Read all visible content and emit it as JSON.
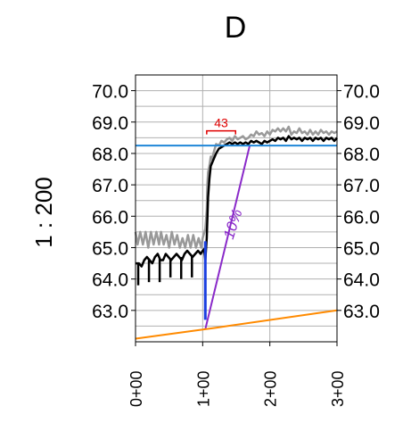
{
  "chart_data": {
    "type": "line",
    "title": "D",
    "ylabel": "1 : 200",
    "ylim": [
      62.0,
      70.5
    ],
    "xlim": [
      0,
      3
    ],
    "grid": true,
    "y_ticks": [
      {
        "value": 70.0,
        "label": "70.0"
      },
      {
        "value": 69.0,
        "label": "69.0"
      },
      {
        "value": 68.0,
        "label": "68.0"
      },
      {
        "value": 67.0,
        "label": "67.0"
      },
      {
        "value": 66.0,
        "label": "66.0"
      },
      {
        "value": 65.0,
        "label": "65.0"
      },
      {
        "value": 64.0,
        "label": "64.0"
      },
      {
        "value": 63.0,
        "label": "63.0"
      }
    ],
    "x_ticks": [
      {
        "value": 0,
        "label": "0+00"
      },
      {
        "value": 1,
        "label": "1+00"
      },
      {
        "value": 2,
        "label": "2+00"
      },
      {
        "value": 3,
        "label": "3+00"
      }
    ],
    "reference_line": {
      "y": 68.25,
      "color": "#1f86d8"
    },
    "annotations": {
      "span_label": "43",
      "span_start": 1.06,
      "span_end": 1.49,
      "span_y": 68.72,
      "slope_label": "10%",
      "slope_label_x": 1.52,
      "slope_label_y": 65.7
    },
    "series": [
      {
        "color": "#999999",
        "points": [
          [
            0.0,
            65.5
          ],
          [
            0.03,
            65.1
          ],
          [
            0.07,
            65.5
          ],
          [
            0.11,
            65.1
          ],
          [
            0.15,
            65.5
          ],
          [
            0.19,
            65.0
          ],
          [
            0.23,
            65.5
          ],
          [
            0.27,
            65.1
          ],
          [
            0.31,
            65.5
          ],
          [
            0.35,
            65.1
          ],
          [
            0.38,
            65.5
          ],
          [
            0.42,
            65.1
          ],
          [
            0.46,
            65.4
          ],
          [
            0.5,
            65.0
          ],
          [
            0.54,
            65.5
          ],
          [
            0.58,
            65.1
          ],
          [
            0.62,
            65.4
          ],
          [
            0.66,
            65.0
          ],
          [
            0.7,
            65.3
          ],
          [
            0.74,
            65.0
          ],
          [
            0.78,
            65.4
          ],
          [
            0.82,
            65.0
          ],
          [
            0.86,
            65.4
          ],
          [
            0.9,
            65.0
          ],
          [
            0.94,
            65.3
          ],
          [
            0.98,
            65.0
          ],
          [
            1.0,
            65.3
          ],
          [
            1.02,
            65.45
          ],
          [
            1.04,
            65.6
          ],
          [
            1.06,
            66.2
          ],
          [
            1.07,
            67.0
          ],
          [
            1.08,
            67.4
          ],
          [
            1.1,
            67.6
          ],
          [
            1.12,
            67.9
          ],
          [
            1.14,
            67.8
          ],
          [
            1.16,
            68.0
          ],
          [
            1.2,
            68.3
          ],
          [
            1.24,
            68.25
          ],
          [
            1.28,
            68.4
          ],
          [
            1.32,
            68.35
          ],
          [
            1.36,
            68.45
          ],
          [
            1.4,
            68.5
          ],
          [
            1.44,
            68.4
          ],
          [
            1.48,
            68.55
          ],
          [
            1.52,
            68.45
          ],
          [
            1.56,
            68.5
          ],
          [
            1.6,
            68.55
          ],
          [
            1.64,
            68.45
          ],
          [
            1.68,
            68.5
          ],
          [
            1.72,
            68.6
          ],
          [
            1.76,
            68.55
          ],
          [
            1.8,
            68.7
          ],
          [
            1.84,
            68.6
          ],
          [
            1.88,
            68.65
          ],
          [
            1.92,
            68.55
          ],
          [
            1.96,
            68.7
          ],
          [
            2.0,
            68.6
          ],
          [
            2.04,
            68.75
          ],
          [
            2.08,
            68.7
          ],
          [
            2.12,
            68.8
          ],
          [
            2.16,
            68.7
          ],
          [
            2.2,
            68.8
          ],
          [
            2.24,
            68.7
          ],
          [
            2.28,
            68.85
          ],
          [
            2.32,
            68.6
          ],
          [
            2.36,
            68.7
          ],
          [
            2.4,
            68.65
          ],
          [
            2.44,
            68.8
          ],
          [
            2.48,
            68.65
          ],
          [
            2.52,
            68.7
          ],
          [
            2.56,
            68.6
          ],
          [
            2.6,
            68.75
          ],
          [
            2.64,
            68.6
          ],
          [
            2.68,
            68.7
          ],
          [
            2.72,
            68.6
          ],
          [
            2.76,
            68.75
          ],
          [
            2.8,
            68.65
          ],
          [
            2.84,
            68.7
          ],
          [
            2.88,
            68.6
          ],
          [
            2.92,
            68.7
          ],
          [
            2.96,
            68.65
          ],
          [
            3.0,
            68.7
          ]
        ]
      },
      {
        "color": "#000000",
        "points": [
          [
            0.0,
            64.5
          ],
          [
            0.05,
            64.5
          ],
          [
            0.09,
            64.4
          ],
          [
            0.13,
            64.6
          ],
          [
            0.17,
            64.7
          ],
          [
            0.21,
            64.6
          ],
          [
            0.25,
            64.5
          ],
          [
            0.29,
            64.7
          ],
          [
            0.33,
            64.8
          ],
          [
            0.37,
            64.6
          ],
          [
            0.41,
            64.6
          ],
          [
            0.45,
            64.8
          ],
          [
            0.49,
            64.7
          ],
          [
            0.53,
            64.6
          ],
          [
            0.57,
            64.7
          ],
          [
            0.61,
            64.8
          ],
          [
            0.65,
            64.7
          ],
          [
            0.69,
            64.6
          ],
          [
            0.73,
            64.8
          ],
          [
            0.77,
            64.9
          ],
          [
            0.81,
            64.8
          ],
          [
            0.85,
            64.7
          ],
          [
            0.89,
            64.8
          ],
          [
            0.93,
            64.9
          ],
          [
            0.97,
            64.8
          ],
          [
            1.0,
            64.9
          ],
          [
            1.02,
            64.95
          ],
          [
            1.04,
            64.6
          ],
          [
            1.06,
            65.3
          ],
          [
            1.07,
            65.9
          ],
          [
            1.08,
            66.6
          ],
          [
            1.1,
            67.2
          ],
          [
            1.12,
            67.6
          ],
          [
            1.14,
            67.7
          ],
          [
            1.16,
            67.8
          ],
          [
            1.2,
            68.0
          ],
          [
            1.24,
            68.15
          ],
          [
            1.28,
            68.2
          ],
          [
            1.32,
            68.25
          ],
          [
            1.36,
            68.3
          ],
          [
            1.4,
            68.35
          ],
          [
            1.44,
            68.3
          ],
          [
            1.48,
            68.35
          ],
          [
            1.52,
            68.3
          ],
          [
            1.56,
            68.35
          ],
          [
            1.6,
            68.3
          ],
          [
            1.64,
            68.35
          ],
          [
            1.68,
            68.3
          ],
          [
            1.72,
            68.4
          ],
          [
            1.76,
            68.35
          ],
          [
            1.8,
            68.4
          ],
          [
            1.84,
            68.35
          ],
          [
            1.88,
            68.3
          ],
          [
            1.92,
            68.4
          ],
          [
            1.96,
            68.35
          ],
          [
            2.0,
            68.4
          ],
          [
            2.04,
            68.45
          ],
          [
            2.08,
            68.4
          ],
          [
            2.12,
            68.5
          ],
          [
            2.16,
            68.45
          ],
          [
            2.2,
            68.5
          ],
          [
            2.24,
            68.4
          ],
          [
            2.28,
            68.55
          ],
          [
            2.32,
            68.45
          ],
          [
            2.36,
            68.5
          ],
          [
            2.4,
            68.45
          ],
          [
            2.44,
            68.5
          ],
          [
            2.48,
            68.4
          ],
          [
            2.52,
            68.5
          ],
          [
            2.56,
            68.45
          ],
          [
            2.6,
            68.5
          ],
          [
            2.64,
            68.4
          ],
          [
            2.68,
            68.5
          ],
          [
            2.72,
            68.45
          ],
          [
            2.76,
            68.5
          ],
          [
            2.8,
            68.4
          ],
          [
            2.84,
            68.5
          ],
          [
            2.88,
            68.45
          ],
          [
            2.92,
            68.5
          ],
          [
            2.96,
            68.4
          ],
          [
            3.0,
            68.5
          ]
        ]
      },
      {
        "color": "#1a3fe0",
        "points": [
          [
            1.04,
            65.2
          ],
          [
            1.04,
            64.3
          ],
          [
            1.04,
            63.1
          ],
          [
            1.04,
            62.7
          ]
        ]
      },
      {
        "color": "#8a2ac9",
        "points": [
          [
            1.04,
            62.4
          ],
          [
            1.7,
            68.25
          ]
        ]
      },
      {
        "color": "#ff8a00",
        "points": [
          [
            0.0,
            62.1
          ],
          [
            1.04,
            62.4
          ],
          [
            1.2,
            62.45
          ],
          [
            3.0,
            63.0
          ]
        ]
      }
    ],
    "drops": [
      {
        "x": 0.04,
        "y_top": 64.5,
        "y_bottom": 63.8
      },
      {
        "x": 0.2,
        "y_top": 64.6,
        "y_bottom": 63.9
      },
      {
        "x": 0.36,
        "y_top": 64.65,
        "y_bottom": 63.9
      },
      {
        "x": 0.52,
        "y_top": 64.65,
        "y_bottom": 64.05
      },
      {
        "x": 0.68,
        "y_top": 64.7,
        "y_bottom": 64.0
      },
      {
        "x": 0.84,
        "y_top": 64.75,
        "y_bottom": 64.05
      }
    ]
  }
}
